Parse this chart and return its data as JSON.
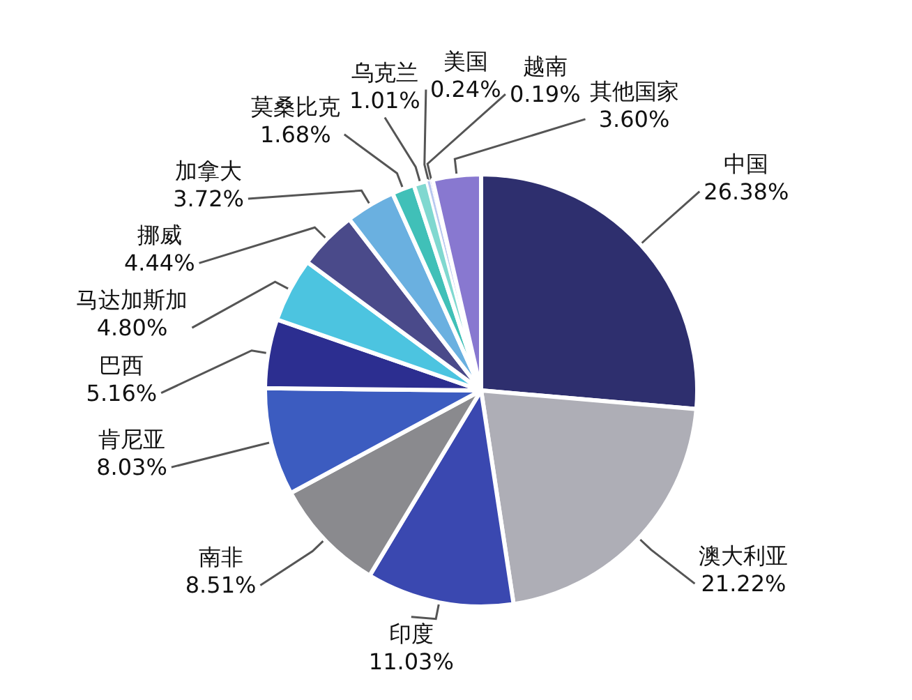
{
  "chart_data": {
    "type": "pie",
    "categories": [
      "中国",
      "澳大利亚",
      "印度",
      "南非",
      "肯尼亚",
      "巴西",
      "马达加斯加",
      "挪威",
      "加拿大",
      "莫桑比克",
      "乌克兰",
      "美国",
      "越南",
      "其他国家"
    ],
    "values": [
      26.38,
      21.22,
      11.03,
      8.51,
      8.03,
      5.16,
      4.8,
      4.44,
      3.72,
      1.68,
      1.01,
      0.24,
      0.19,
      3.6
    ],
    "value_labels": [
      "26.38%",
      "21.22%",
      "11.03%",
      "8.51%",
      "8.03%",
      "5.16%",
      "4.80%",
      "4.44%",
      "3.72%",
      "1.68%",
      "1.01%",
      "0.24%",
      "0.19%",
      "3.60%"
    ],
    "colors": [
      "#2e2f6e",
      "#aeaeb6",
      "#3a48b0",
      "#8a8a8e",
      "#3c5cc0",
      "#2c2e90",
      "#4cc4e0",
      "#4a4a8a",
      "#6ab0e0",
      "#40c0b8",
      "#80d8d0",
      "#b8c8f0",
      "#a898e0",
      "#8878d0"
    ],
    "legend": false
  }
}
